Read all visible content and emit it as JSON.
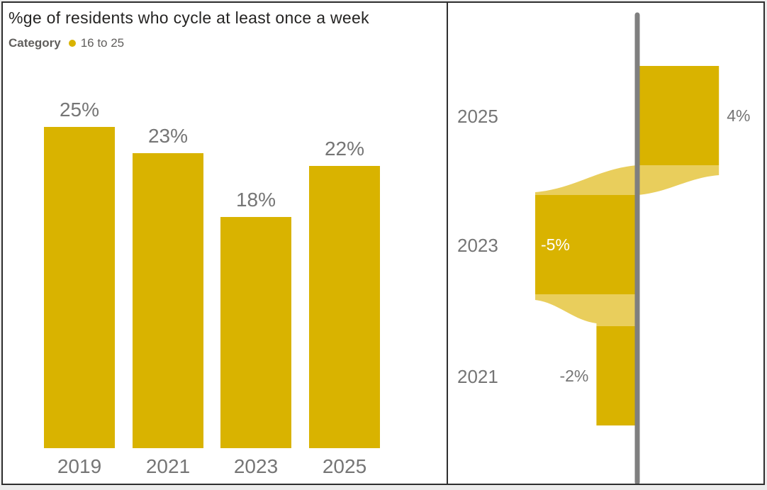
{
  "window": {
    "border_color": "#2E2E2E",
    "page_background": "#ECECEC"
  },
  "left_chart_header": {
    "title": "%ge of residents who cycle at least once a week",
    "legend_title": "Category",
    "legend_item": "16 to 25"
  },
  "colors": {
    "bar_gold": "#D9B300",
    "ribbon_light_gold": "#E9CE5C",
    "axis_line_gray": "#7F7F7F",
    "label_gray": "#757575",
    "title_dark": "#252423",
    "legend_gray": "#605E5C",
    "inside_label_white": "#FFFFFF"
  },
  "chart_data": [
    {
      "type": "bar",
      "title": "%ge of residents who cycle at least once a week",
      "legend": {
        "title": "Category",
        "items": [
          "16 to 25"
        ],
        "position": "top-left"
      },
      "categories": [
        "2019",
        "2021",
        "2023",
        "2025"
      ],
      "values": [
        25,
        23,
        18,
        22
      ],
      "data_labels": [
        "25%",
        "23%",
        "18%",
        "22%"
      ],
      "xlabel": "",
      "ylabel": "",
      "ylim": [
        0,
        25
      ],
      "grid": false,
      "bar_color": "#D9B300",
      "data_label_position": "above-bar",
      "axis_labels_position": "below-bar"
    },
    {
      "type": "bar",
      "subtype": "horizontal-diverging-ribbon",
      "orientation": "horizontal",
      "categories": [
        "2025",
        "2023",
        "2021"
      ],
      "values": [
        4,
        -5,
        -2
      ],
      "data_labels": [
        "4%",
        "-5%",
        "-2%"
      ],
      "label_positions": [
        "outside-right",
        "inside-left",
        "outside-left"
      ],
      "xlim": [
        -5,
        4
      ],
      "zero_line": true,
      "grid": false,
      "bar_color": "#D9B300",
      "ribbon_color": "#E9CE5C",
      "zero_line_color": "#7F7F7F",
      "ribbons_between": [
        [
          "2025",
          "2023"
        ],
        [
          "2023",
          "2021"
        ]
      ]
    }
  ]
}
